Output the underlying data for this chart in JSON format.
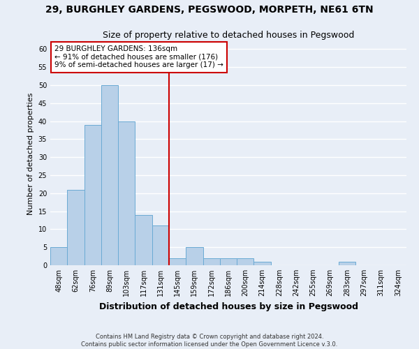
{
  "title": "29, BURGHLEY GARDENS, PEGSWOOD, MORPETH, NE61 6TN",
  "subtitle": "Size of property relative to detached houses in Pegswood",
  "xlabel": "Distribution of detached houses by size in Pegswood",
  "ylabel": "Number of detached properties",
  "bar_labels": [
    "48sqm",
    "62sqm",
    "76sqm",
    "89sqm",
    "103sqm",
    "117sqm",
    "131sqm",
    "145sqm",
    "159sqm",
    "172sqm",
    "186sqm",
    "200sqm",
    "214sqm",
    "228sqm",
    "242sqm",
    "255sqm",
    "269sqm",
    "283sqm",
    "297sqm",
    "311sqm",
    "324sqm"
  ],
  "bar_heights": [
    5,
    21,
    39,
    50,
    40,
    14,
    11,
    2,
    5,
    2,
    2,
    2,
    1,
    0,
    0,
    0,
    0,
    1,
    0,
    0,
    0
  ],
  "bar_color": "#b8d0e8",
  "bar_edge_color": "#6aaad4",
  "reference_line_x": 6.5,
  "reference_line_color": "#cc0000",
  "annotation_text": "29 BURGHLEY GARDENS: 136sqm\n← 91% of detached houses are smaller (176)\n9% of semi-detached houses are larger (17) →",
  "annotation_box_color": "#ffffff",
  "annotation_box_edge": "#cc0000",
  "ylim": [
    0,
    62
  ],
  "yticks": [
    0,
    5,
    10,
    15,
    20,
    25,
    30,
    35,
    40,
    45,
    50,
    55,
    60
  ],
  "footer1": "Contains HM Land Registry data © Crown copyright and database right 2024.",
  "footer2": "Contains public sector information licensed under the Open Government Licence v.3.0.",
  "bg_color": "#e8eef7",
  "grid_color": "#ffffff",
  "title_fontsize": 10,
  "subtitle_fontsize": 9,
  "xlabel_fontsize": 9,
  "ylabel_fontsize": 8,
  "tick_fontsize": 7,
  "annotation_fontsize": 7.5,
  "footer_fontsize": 6
}
